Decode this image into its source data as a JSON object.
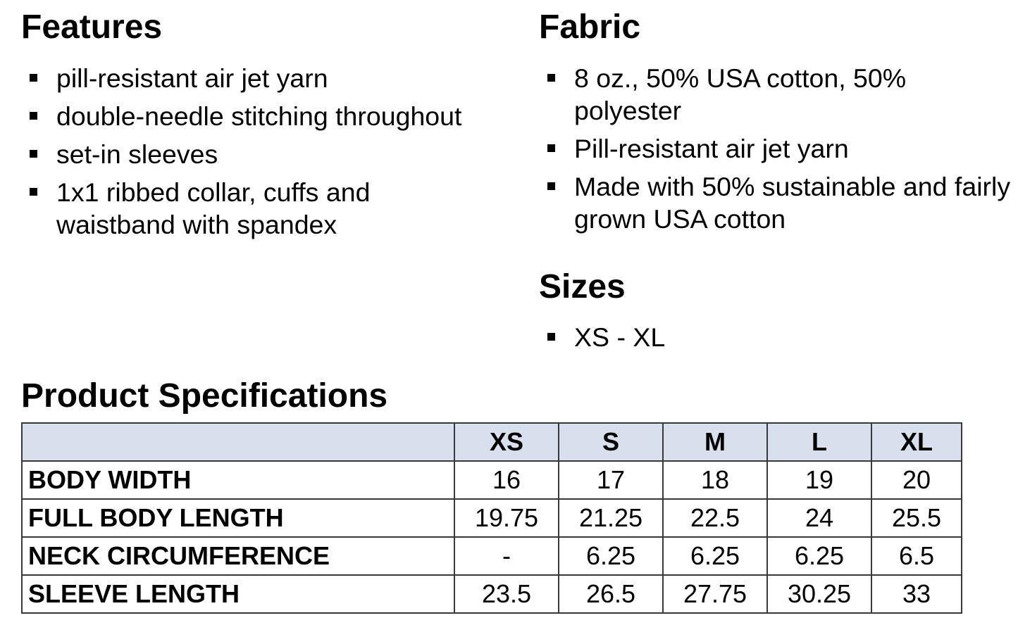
{
  "document": {
    "background": "#ffffff",
    "text_color": "#000000"
  },
  "sections": {
    "features": {
      "title": "Features",
      "items": [
        "pill-resistant air jet yarn",
        "double-needle stitching throughout",
        "set-in sleeves",
        "1x1 ribbed collar, cuffs and waistband with spandex"
      ]
    },
    "fabric": {
      "title": "Fabric",
      "items": [
        "8 oz., 50% USA cotton, 50% polyester",
        "Pill-resistant air jet yarn",
        "Made with 50% sustainable and fairly grown USA cotton"
      ]
    },
    "sizes": {
      "title": "Sizes",
      "items": [
        "XS - XL"
      ]
    },
    "specs": {
      "title": "Product Specifications",
      "table": {
        "header_bg": "#d8e0ed",
        "border_color": "#383838",
        "corner_label": "",
        "size_columns": [
          "XS",
          "S",
          "M",
          "L",
          "XL"
        ],
        "rows": [
          {
            "label": "BODY WIDTH",
            "values": [
              "16",
              "17",
              "18",
              "19",
              "20"
            ]
          },
          {
            "label": "FULL BODY LENGTH",
            "values": [
              "19.75",
              "21.25",
              "22.5",
              "24",
              "25.5"
            ]
          },
          {
            "label": "NECK CIRCUMFERENCE",
            "values": [
              "-",
              "6.25",
              "6.25",
              "6.25",
              "6.5"
            ]
          },
          {
            "label": "SLEEVE LENGTH",
            "values": [
              "23.5",
              "26.5",
              "27.75",
              "30.25",
              "33"
            ]
          }
        ]
      }
    }
  }
}
